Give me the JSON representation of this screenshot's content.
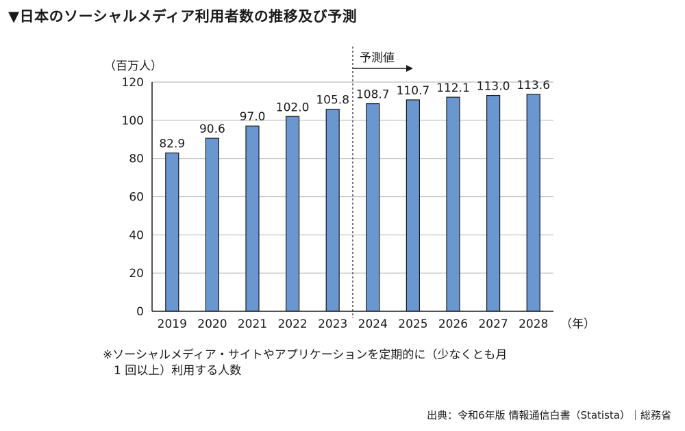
{
  "title": "▼日本のソーシャルメディア利用者数の推移及び予測",
  "chart_data": {
    "type": "bar",
    "categories": [
      "2019",
      "2020",
      "2021",
      "2022",
      "2023",
      "2024",
      "2025",
      "2026",
      "2027",
      "2028"
    ],
    "values": [
      82.9,
      90.6,
      97.0,
      102.0,
      105.8,
      108.7,
      110.7,
      112.1,
      113.0,
      113.6
    ],
    "value_labels": [
      "82.9",
      "90.6",
      "97.0",
      "102.0",
      "105.8",
      "108.7",
      "110.7",
      "112.1",
      "113.0",
      "113.6"
    ],
    "ylabel": "（百万人）",
    "xunit": "（年）",
    "ylim": [
      0,
      120
    ],
    "yticks": [
      "0",
      "20",
      "40",
      "60",
      "80",
      "100",
      "120"
    ],
    "grid": true,
    "forecast_label": "予測値",
    "forecast_start": "2024",
    "bar_color": "#6b97d0"
  },
  "note_line1": "※ソーシャルメディア・サイトやアプリケーションを定期的に（少なくとも月",
  "note_line2": "1 回以上）利用する人数",
  "source": "出典：令和6年版 情報通信白書（Statista）｜総務省"
}
